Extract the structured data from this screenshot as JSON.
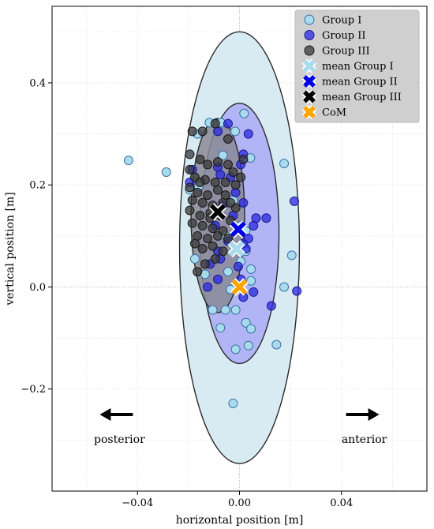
{
  "chart_data": {
    "type": "scatter",
    "title": "",
    "xlabel": "horizontal position [m]",
    "ylabel": "vertical position [m]",
    "xlim": [
      -0.0735,
      0.0735
    ],
    "ylim": [
      -0.4,
      0.55
    ],
    "xticks": [
      -0.04,
      0.0,
      0.04
    ],
    "xtick_labels": [
      "−0.04",
      "0.00",
      "0.04"
    ],
    "yticks": [
      -0.2,
      0.0,
      0.2,
      0.4
    ],
    "ytick_labels": [
      "−0.2",
      "0.0",
      "0.2",
      "0.4"
    ],
    "grid": true,
    "legend_position": "top-right",
    "colors": {
      "group1": "#a8dcec",
      "group1_edge": "#3a6ea5",
      "group2": "#2a2ae0",
      "group3": "#3a3a3a",
      "mean1": "#a8dcec",
      "mean2": "#0000e6",
      "mean3": "#000000",
      "com": "#ffa500",
      "ellipse1_fill": "#d9ebf2",
      "ellipse2_fill": "#a8a8f5",
      "ellipse3_fill": "#8a8a96"
    },
    "ellipses": [
      {
        "series": "Group I",
        "cx": 0.0,
        "cy": 0.077,
        "rx": 0.0235,
        "ry": 0.423
      },
      {
        "series": "Group II",
        "cx": 0.0,
        "cy": 0.105,
        "rx": 0.0155,
        "ry": 0.255
      },
      {
        "series": "Group III",
        "cx": -0.0085,
        "cy": 0.14,
        "rx": 0.0105,
        "ry": 0.19
      }
    ],
    "series": [
      {
        "name": "Group I",
        "marker": "circle",
        "points": [
          [
            -0.0435,
            0.248
          ],
          [
            -0.0287,
            0.225
          ],
          [
            -0.0165,
            0.3
          ],
          [
            -0.0118,
            0.322
          ],
          [
            -0.0073,
            0.322
          ],
          [
            -0.0017,
            0.305
          ],
          [
            0.0018,
            0.34
          ],
          [
            0.0043,
            0.253
          ],
          [
            0.0175,
            0.242
          ],
          [
            -0.016,
            0.197
          ],
          [
            -0.0195,
            0.19
          ],
          [
            -0.0065,
            0.258
          ],
          [
            -0.0025,
            0.17
          ],
          [
            0.0005,
            0.12
          ],
          [
            0.0025,
            0.11
          ],
          [
            -0.0055,
            0.1
          ],
          [
            -0.0175,
            0.055
          ],
          [
            -0.0135,
            0.025
          ],
          [
            -0.0045,
            0.03
          ],
          [
            0.0025,
            0.07
          ],
          [
            0.0045,
            0.035
          ],
          [
            0.0045,
            0.012
          ],
          [
            0.0205,
            0.062
          ],
          [
            0.0175,
            0.0
          ],
          [
            -0.0035,
            -0.005
          ],
          [
            -0.0055,
            -0.045
          ],
          [
            -0.0015,
            -0.045
          ],
          [
            0.0025,
            -0.07
          ],
          [
            0.0045,
            -0.082
          ],
          [
            -0.0075,
            -0.08
          ],
          [
            -0.0105,
            -0.045
          ],
          [
            0.0035,
            -0.115
          ],
          [
            0.0145,
            -0.113
          ],
          [
            -0.0015,
            -0.122
          ],
          [
            -0.0025,
            -0.228
          ],
          [
            0.0005,
            0.05
          ]
        ]
      },
      {
        "name": "Group II",
        "marker": "circle",
        "points": [
          [
            -0.0195,
            0.205
          ],
          [
            -0.0185,
            0.23
          ],
          [
            -0.0085,
            0.235
          ],
          [
            -0.0075,
            0.22
          ],
          [
            -0.0045,
            0.32
          ],
          [
            0.0015,
            0.26
          ],
          [
            0.0005,
            0.24
          ],
          [
            -0.0035,
            0.215
          ],
          [
            -0.0015,
            0.185
          ],
          [
            0.0015,
            0.165
          ],
          [
            -0.0065,
            0.16
          ],
          [
            -0.0025,
            0.14
          ],
          [
            0.0055,
            0.12
          ],
          [
            0.0065,
            0.135
          ],
          [
            -0.0095,
            0.12
          ],
          [
            -0.0045,
            0.09
          ],
          [
            0.0015,
            0.085
          ],
          [
            0.0035,
            0.095
          ],
          [
            0.0025,
            0.075
          ],
          [
            -0.0085,
            0.07
          ],
          [
            -0.0075,
            0.055
          ],
          [
            -0.0115,
            0.045
          ],
          [
            -0.0085,
            0.015
          ],
          [
            -0.0005,
            0.04
          ],
          [
            0.0005,
            0.015
          ],
          [
            0.0015,
            -0.02
          ],
          [
            0.0055,
            -0.01
          ],
          [
            0.0105,
            0.135
          ],
          [
            0.0215,
            0.168
          ],
          [
            0.0225,
            -0.008
          ],
          [
            0.0125,
            -0.037
          ],
          [
            -0.0085,
            0.305
          ],
          [
            -0.0125,
            0.0
          ],
          [
            0.0035,
            0.3
          ]
        ]
      },
      {
        "name": "Group III",
        "marker": "circle",
        "points": [
          [
            -0.0185,
            0.305
          ],
          [
            -0.0145,
            0.305
          ],
          [
            -0.0095,
            0.32
          ],
          [
            -0.0045,
            0.29
          ],
          [
            0.0015,
            0.25
          ],
          [
            -0.0195,
            0.26
          ],
          [
            -0.0155,
            0.25
          ],
          [
            -0.0125,
            0.24
          ],
          [
            -0.0085,
            0.245
          ],
          [
            -0.0045,
            0.24
          ],
          [
            -0.0195,
            0.23
          ],
          [
            -0.0175,
            0.215
          ],
          [
            -0.0135,
            0.21
          ],
          [
            -0.0095,
            0.205
          ],
          [
            -0.0055,
            0.205
          ],
          [
            -0.0025,
            0.225
          ],
          [
            -0.0195,
            0.195
          ],
          [
            -0.0165,
            0.185
          ],
          [
            -0.0125,
            0.18
          ],
          [
            -0.0085,
            0.19
          ],
          [
            -0.0055,
            0.18
          ],
          [
            -0.0015,
            0.2
          ],
          [
            -0.0185,
            0.17
          ],
          [
            -0.0145,
            0.165
          ],
          [
            -0.0105,
            0.16
          ],
          [
            -0.0065,
            0.165
          ],
          [
            -0.0015,
            0.155
          ],
          [
            -0.0195,
            0.15
          ],
          [
            -0.0155,
            0.14
          ],
          [
            -0.0115,
            0.145
          ],
          [
            -0.0075,
            0.14
          ],
          [
            -0.0035,
            0.13
          ],
          [
            -0.0185,
            0.125
          ],
          [
            -0.0145,
            0.12
          ],
          [
            -0.0105,
            0.115
          ],
          [
            -0.0065,
            0.11
          ],
          [
            -0.0165,
            0.1
          ],
          [
            -0.0125,
            0.095
          ],
          [
            -0.0085,
            0.1
          ],
          [
            -0.0045,
            0.095
          ],
          [
            -0.0145,
            0.075
          ],
          [
            -0.0105,
            0.08
          ],
          [
            -0.0065,
            0.07
          ],
          [
            -0.0135,
            0.045
          ],
          [
            -0.0095,
            0.055
          ],
          [
            -0.0165,
            0.03
          ],
          [
            -0.0115,
            0.135
          ],
          [
            -0.0035,
            0.165
          ],
          [
            -0.0155,
            0.205
          ],
          [
            0.0005,
            0.215
          ],
          [
            -0.0175,
            0.085
          ]
        ]
      }
    ],
    "markers": [
      {
        "name": "mean Group I",
        "marker": "x",
        "x": -0.0012,
        "y": 0.075
      },
      {
        "name": "mean Group II",
        "marker": "x",
        "x": -0.0005,
        "y": 0.113
      },
      {
        "name": "mean Group III",
        "marker": "x",
        "x": -0.0085,
        "y": 0.147
      },
      {
        "name": "CoM",
        "marker": "x",
        "x": 0.0,
        "y": 0.0
      }
    ],
    "legend": [
      "Group I",
      "Group II",
      "Group III",
      "mean Group I",
      "mean Group II",
      "mean Group III",
      "CoM"
    ],
    "annotations": [
      {
        "text": "posterior",
        "arrow": "left",
        "x": -0.048,
        "y": -0.25
      },
      {
        "text": "anterior",
        "arrow": "right",
        "x": 0.048,
        "y": -0.25
      }
    ]
  }
}
